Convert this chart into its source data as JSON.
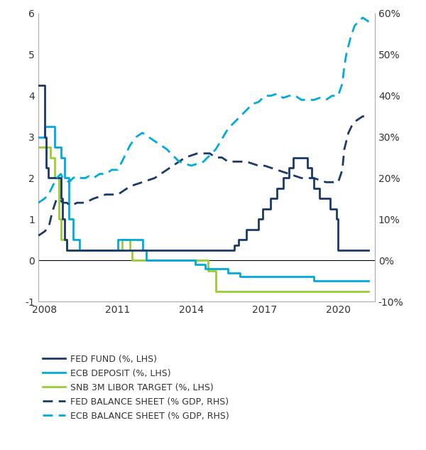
{
  "fed_fund": {
    "x": [
      2007.75,
      2008.0,
      2008.08,
      2008.17,
      2008.33,
      2008.5,
      2008.67,
      2008.75,
      2008.83,
      2008.92,
      2009.0,
      2009.5,
      2010.0,
      2010.5,
      2011.0,
      2011.5,
      2012.0,
      2012.5,
      2013.0,
      2013.5,
      2014.0,
      2014.5,
      2015.0,
      2015.75,
      2015.92,
      2016.25,
      2016.75,
      2016.92,
      2017.25,
      2017.5,
      2017.75,
      2018.0,
      2018.17,
      2018.5,
      2018.75,
      2018.92,
      2019.0,
      2019.25,
      2019.67,
      2019.92,
      2020.0,
      2020.25,
      2021.25
    ],
    "y": [
      4.25,
      3.0,
      2.25,
      2.0,
      2.0,
      2.0,
      1.5,
      1.0,
      0.5,
      0.25,
      0.25,
      0.25,
      0.25,
      0.25,
      0.25,
      0.25,
      0.25,
      0.25,
      0.25,
      0.25,
      0.25,
      0.25,
      0.25,
      0.375,
      0.5,
      0.75,
      1.0,
      1.25,
      1.5,
      1.75,
      2.0,
      2.25,
      2.5,
      2.5,
      2.25,
      2.0,
      1.75,
      1.5,
      1.25,
      1.0,
      0.25,
      0.25,
      0.25
    ],
    "color": "#1a3a6b",
    "label": "FED FUND (%, LHS)"
  },
  "ecb_deposit": {
    "x": [
      2007.75,
      2008.0,
      2008.42,
      2008.67,
      2008.83,
      2009.0,
      2009.17,
      2009.42,
      2009.67,
      2010.0,
      2010.5,
      2011.0,
      2011.33,
      2011.58,
      2011.75,
      2012.0,
      2012.17,
      2012.5,
      2012.75,
      2013.0,
      2013.5,
      2014.0,
      2014.17,
      2014.58,
      2015.0,
      2015.5,
      2016.0,
      2016.5,
      2017.0,
      2017.5,
      2018.0,
      2018.5,
      2019.0,
      2019.5,
      2019.75,
      2020.0,
      2020.5,
      2021.25
    ],
    "y": [
      3.0,
      3.25,
      2.75,
      2.5,
      2.0,
      1.0,
      0.5,
      0.25,
      0.25,
      0.25,
      0.25,
      0.5,
      0.5,
      0.5,
      0.5,
      0.25,
      0.0,
      0.0,
      0.0,
      0.0,
      0.0,
      0.0,
      -0.1,
      -0.2,
      -0.2,
      -0.3,
      -0.4,
      -0.4,
      -0.4,
      -0.4,
      -0.4,
      -0.4,
      -0.5,
      -0.5,
      -0.5,
      -0.5,
      -0.5,
      -0.5
    ],
    "color": "#00aadd",
    "label": "ECB DEPOSIT (%, LHS)"
  },
  "snb_libor": {
    "x": [
      2007.75,
      2008.0,
      2008.25,
      2008.42,
      2008.58,
      2008.67,
      2008.75,
      2008.83,
      2008.92,
      2009.0,
      2009.5,
      2010.0,
      2010.5,
      2011.0,
      2011.17,
      2011.5,
      2011.58,
      2011.67,
      2011.75,
      2012.0,
      2012.5,
      2013.0,
      2013.5,
      2014.0,
      2014.5,
      2014.67,
      2015.0,
      2015.5,
      2016.0,
      2016.5,
      2017.0,
      2017.5,
      2018.0,
      2018.5,
      2019.0,
      2019.5,
      2020.0,
      2020.5,
      2021.25
    ],
    "y": [
      2.75,
      2.75,
      2.5,
      2.0,
      1.0,
      0.5,
      0.5,
      0.5,
      0.25,
      0.25,
      0.25,
      0.25,
      0.25,
      0.25,
      0.5,
      0.25,
      0.0,
      0.0,
      0.0,
      0.0,
      0.0,
      0.0,
      0.0,
      0.0,
      0.0,
      -0.25,
      -0.75,
      -0.75,
      -0.75,
      -0.75,
      -0.75,
      -0.75,
      -0.75,
      -0.75,
      -0.75,
      -0.75,
      -0.75,
      -0.75,
      -0.75
    ],
    "color": "#9acd32",
    "label": "SNB 3M LIBOR TARGET (%, LHS)"
  },
  "fed_balance": {
    "x": [
      2007.75,
      2008.0,
      2008.17,
      2008.33,
      2008.5,
      2008.67,
      2008.75,
      2008.92,
      2009.0,
      2009.17,
      2009.33,
      2009.5,
      2009.67,
      2009.83,
      2010.0,
      2010.25,
      2010.5,
      2010.75,
      2011.0,
      2011.25,
      2011.5,
      2011.75,
      2012.0,
      2012.25,
      2012.5,
      2012.75,
      2013.0,
      2013.25,
      2013.5,
      2013.75,
      2014.0,
      2014.25,
      2014.5,
      2014.75,
      2015.0,
      2015.25,
      2015.5,
      2015.75,
      2016.0,
      2016.25,
      2016.5,
      2016.75,
      2017.0,
      2017.25,
      2017.5,
      2017.75,
      2018.0,
      2018.25,
      2018.5,
      2018.75,
      2019.0,
      2019.25,
      2019.5,
      2019.75,
      2020.0,
      2020.17,
      2020.25,
      2020.42,
      2020.58,
      2020.75,
      2021.0,
      2021.25
    ],
    "y": [
      6.0,
      7.0,
      8.0,
      12.0,
      15.0,
      14.5,
      14.0,
      14.0,
      13.5,
      13.5,
      14.0,
      14.0,
      14.0,
      14.5,
      15.0,
      15.5,
      16.0,
      16.0,
      16.0,
      17.0,
      18.0,
      18.5,
      19.0,
      19.5,
      20.0,
      21.0,
      22.0,
      23.0,
      24.0,
      25.0,
      25.5,
      26.0,
      26.0,
      26.0,
      25.0,
      25.0,
      24.0,
      24.0,
      24.0,
      24.0,
      23.5,
      23.0,
      23.0,
      22.5,
      22.0,
      21.5,
      21.0,
      20.5,
      20.0,
      20.0,
      20.0,
      19.5,
      19.0,
      19.0,
      19.0,
      22.0,
      27.0,
      31.0,
      33.0,
      34.0,
      35.0,
      35.0
    ],
    "color": "#1a3a6b",
    "label": "FED BALANCE SHEET (% GDP, RHS)"
  },
  "ecb_balance": {
    "x": [
      2007.75,
      2008.0,
      2008.17,
      2008.33,
      2008.5,
      2008.67,
      2008.75,
      2008.92,
      2009.0,
      2009.17,
      2009.33,
      2009.5,
      2009.67,
      2009.83,
      2010.0,
      2010.25,
      2010.5,
      2010.75,
      2011.0,
      2011.25,
      2011.5,
      2011.75,
      2012.0,
      2012.25,
      2012.5,
      2012.75,
      2013.0,
      2013.25,
      2013.5,
      2013.75,
      2014.0,
      2014.25,
      2014.5,
      2014.75,
      2015.0,
      2015.25,
      2015.5,
      2015.75,
      2016.0,
      2016.25,
      2016.5,
      2016.75,
      2017.0,
      2017.25,
      2017.5,
      2017.75,
      2018.0,
      2018.25,
      2018.5,
      2018.75,
      2019.0,
      2019.25,
      2019.5,
      2019.75,
      2020.0,
      2020.17,
      2020.25,
      2020.33,
      2020.5,
      2020.67,
      2020.83,
      2021.0,
      2021.25
    ],
    "y": [
      14.0,
      15.0,
      16.0,
      18.0,
      20.0,
      21.0,
      20.0,
      19.5,
      19.0,
      20.0,
      20.5,
      20.0,
      20.0,
      20.5,
      20.0,
      21.0,
      21.0,
      22.0,
      22.0,
      25.0,
      28.0,
      30.0,
      31.0,
      30.0,
      29.0,
      28.0,
      27.0,
      25.5,
      24.0,
      23.5,
      23.0,
      23.5,
      24.0,
      25.5,
      27.0,
      29.5,
      32.0,
      33.5,
      35.0,
      36.5,
      38.0,
      38.5,
      40.0,
      40.0,
      40.5,
      39.5,
      40.0,
      40.0,
      39.0,
      39.0,
      39.0,
      39.5,
      39.0,
      40.0,
      40.0,
      43.0,
      47.0,
      50.0,
      54.0,
      57.0,
      58.0,
      59.0,
      58.0
    ],
    "color": "#00aadd",
    "label": "ECB BALANCE SHEET (% GDP, RHS)"
  },
  "xlim": [
    2007.75,
    2021.5
  ],
  "ylim_left": [
    -1.0,
    6.0
  ],
  "ylim_right": [
    -10.0,
    60.0
  ],
  "xticks": [
    2008,
    2011,
    2014,
    2017,
    2020
  ],
  "yticks_left": [
    -1,
    0,
    1,
    2,
    3,
    4,
    5,
    6
  ],
  "yticks_right": [
    -10,
    0,
    10,
    20,
    30,
    40,
    50,
    60
  ],
  "bg_color": "#ffffff"
}
